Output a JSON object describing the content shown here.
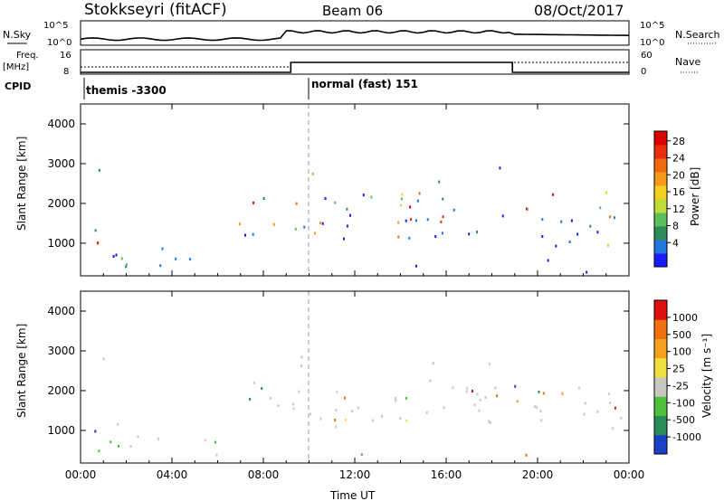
{
  "header": {
    "title": "Stokkseyri (fitACF)",
    "beam": "Beam 06",
    "date": "08/Oct/2017"
  },
  "status_panels": {
    "nsky_label": "N.Sky",
    "nsky_ticks": [
      "10^5",
      "10^0"
    ],
    "nsearch_label": "N.Search",
    "nsearch_ticks": [
      "10^5",
      "10^0"
    ],
    "freq_label_1": "Freq.",
    "freq_label_2": "[MHz]",
    "freq_ticks": [
      "16",
      "8"
    ],
    "nave_label": "Nave",
    "nave_ticks": [
      "60",
      "0"
    ],
    "cpid_label": "CPID",
    "cpid_segments": [
      {
        "label": "themis -3300",
        "start_hour": 0
      },
      {
        "label": "normal (fast) 151",
        "start_hour": 10.0
      }
    ]
  },
  "chart_data": [
    {
      "type": "heatmap",
      "name": "power",
      "ylabel": "Slant Range [km]",
      "xlabel": "",
      "x_ticks": [
        "00:00",
        "04:00",
        "08:00",
        "12:00",
        "16:00",
        "20:00",
        "00:00"
      ],
      "xlim_hours": [
        0,
        24
      ],
      "y_ticks": [
        1000,
        2000,
        3000,
        4000
      ],
      "ylim": [
        180,
        4500
      ],
      "colorbar": {
        "label": "Power [dB]",
        "ticks": [
          "4",
          "8",
          "12",
          "16",
          "20",
          "24",
          "28"
        ],
        "colors": [
          "#1a1aff",
          "#2277dd",
          "#2e8b57",
          "#5cbf5c",
          "#bfdc3a",
          "#f5d020",
          "#f59a1a",
          "#f06a10",
          "#e83010",
          "#dd0000"
        ]
      }
    },
    {
      "type": "heatmap",
      "name": "velocity",
      "ylabel": "Slant Range [km]",
      "xlabel": "Time UT",
      "x_ticks": [
        "00:00",
        "04:00",
        "08:00",
        "12:00",
        "16:00",
        "20:00",
        "00:00"
      ],
      "xlim_hours": [
        0,
        24
      ],
      "y_ticks": [
        1000,
        2000,
        3000,
        4000
      ],
      "ylim": [
        180,
        4500
      ],
      "colorbar": {
        "label": "Velocity [m s⁻¹]",
        "ticks": [
          "1000",
          "500",
          "100",
          "25",
          "-25",
          "-100",
          "-500",
          "-1000"
        ],
        "colors": [
          "#1a40c8",
          "#2a8a5a",
          "#4cc23c",
          "#c8c8c0",
          "#f0e040",
          "#f5a020",
          "#f07010",
          "#e01010"
        ]
      }
    }
  ]
}
